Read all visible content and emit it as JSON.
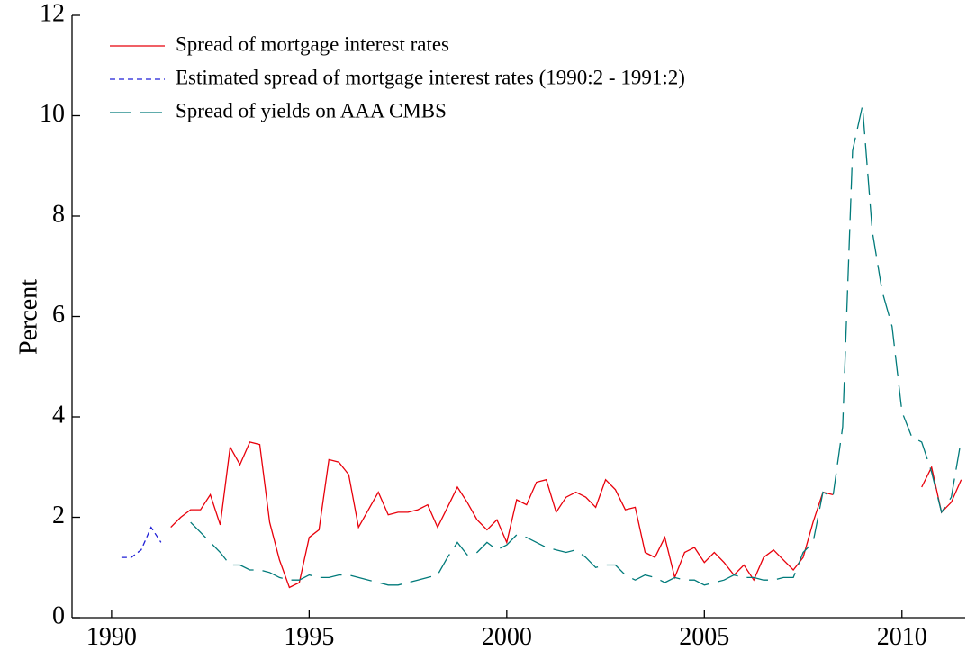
{
  "chart_data": {
    "type": "line",
    "ylabel": "Percent",
    "xlim": [
      1989.0,
      2011.6
    ],
    "ylim": [
      0,
      12
    ],
    "xticks": [
      1990,
      1995,
      2000,
      2005,
      2010
    ],
    "yticks": [
      0,
      2,
      4,
      6,
      8,
      10,
      12
    ],
    "legend": "top-left",
    "series": [
      {
        "name": "Spread of mortgage interest rates",
        "color": "#e8000b",
        "style": "solid",
        "x": [
          1991.5,
          1991.75,
          1992.0,
          1992.25,
          1992.5,
          1992.75,
          1993.0,
          1993.25,
          1993.5,
          1993.75,
          1994.0,
          1994.25,
          1994.5,
          1994.75,
          1995.0,
          1995.25,
          1995.5,
          1995.75,
          1996.0,
          1996.25,
          1996.5,
          1996.75,
          1997.0,
          1997.25,
          1997.5,
          1997.75,
          1998.0,
          1998.25,
          1998.5,
          1998.75,
          1999.0,
          1999.25,
          1999.5,
          1999.75,
          2000.0,
          2000.25,
          2000.5,
          2000.75,
          2001.0,
          2001.25,
          2001.5,
          2001.75,
          2002.0,
          2002.25,
          2002.5,
          2002.75,
          2003.0,
          2003.25,
          2003.5,
          2003.75,
          2004.0,
          2004.25,
          2004.5,
          2004.75,
          2005.0,
          2005.25,
          2005.5,
          2005.75,
          2006.0,
          2006.25,
          2006.5,
          2006.75,
          2007.0,
          2007.25,
          2007.5,
          2007.75,
          2008.0,
          2008.25,
          2008.5,
          2010.5,
          2010.75,
          2011.0,
          2011.25,
          2011.5
        ],
        "values": [
          1.8,
          2.0,
          2.15,
          2.15,
          2.45,
          1.85,
          3.4,
          3.05,
          3.5,
          3.45,
          1.9,
          1.15,
          0.6,
          0.7,
          1.6,
          1.75,
          3.15,
          3.1,
          2.85,
          1.8,
          2.15,
          2.5,
          2.05,
          2.1,
          2.1,
          2.15,
          2.25,
          1.8,
          2.2,
          2.6,
          2.3,
          1.95,
          1.75,
          1.95,
          1.5,
          2.35,
          2.25,
          2.7,
          2.75,
          2.1,
          2.4,
          2.5,
          2.4,
          2.2,
          2.75,
          2.55,
          2.15,
          2.2,
          1.3,
          1.2,
          1.6,
          0.8,
          1.3,
          1.4,
          1.1,
          1.3,
          1.1,
          0.85,
          1.05,
          0.75,
          1.2,
          1.35,
          1.15,
          0.95,
          1.2,
          1.9,
          2.5,
          2.45,
          null,
          2.6,
          3.0,
          2.1,
          2.3,
          2.75
        ]
      },
      {
        "name": "Estimated spread of mortgage interest rates (1990:2 - 1991:2)",
        "color": "#1f1fd6",
        "style": "dashed",
        "x": [
          1990.25,
          1990.5,
          1990.75,
          1991.0,
          1991.25
        ],
        "values": [
          1.2,
          1.2,
          1.35,
          1.8,
          1.5
        ]
      },
      {
        "name": "Spread of yields on AAA CMBS",
        "color": "#007a7a",
        "style": "long-dash",
        "x": [
          1992.0,
          1992.25,
          1992.5,
          1992.75,
          1993.0,
          1993.25,
          1993.5,
          1993.75,
          1994.0,
          1994.25,
          1994.5,
          1994.75,
          1995.0,
          1995.25,
          1995.5,
          1995.75,
          1996.0,
          1996.25,
          1996.5,
          1996.75,
          1997.0,
          1997.25,
          1997.5,
          1997.75,
          1998.0,
          1998.25,
          1998.5,
          1998.75,
          1999.0,
          1999.25,
          1999.5,
          1999.75,
          2000.0,
          2000.25,
          2000.5,
          2000.75,
          2001.0,
          2001.25,
          2001.5,
          2001.75,
          2002.0,
          2002.25,
          2002.5,
          2002.75,
          2003.0,
          2003.25,
          2003.5,
          2003.75,
          2004.0,
          2004.25,
          2004.5,
          2004.75,
          2005.0,
          2005.25,
          2005.5,
          2005.75,
          2006.0,
          2006.25,
          2006.5,
          2006.75,
          2007.0,
          2007.25,
          2007.5,
          2007.75,
          2008.0,
          2008.25,
          2008.5,
          2008.75,
          2009.0,
          2009.25,
          2009.5,
          2009.75,
          2010.0,
          2010.25,
          2010.5,
          2010.75,
          2011.0,
          2011.25,
          2011.5
        ],
        "values": [
          1.9,
          1.7,
          1.5,
          1.3,
          1.05,
          1.05,
          0.95,
          0.95,
          0.9,
          0.8,
          0.75,
          0.75,
          0.85,
          0.8,
          0.8,
          0.85,
          0.85,
          0.8,
          0.75,
          0.7,
          0.65,
          0.65,
          0.7,
          0.75,
          0.8,
          0.85,
          1.2,
          1.5,
          1.25,
          1.3,
          1.5,
          1.35,
          1.45,
          1.65,
          1.6,
          1.5,
          1.4,
          1.35,
          1.3,
          1.35,
          1.2,
          1.0,
          1.05,
          1.05,
          0.85,
          0.75,
          0.85,
          0.8,
          0.7,
          0.8,
          0.75,
          0.75,
          0.65,
          0.7,
          0.75,
          0.85,
          0.8,
          0.8,
          0.75,
          0.75,
          0.8,
          0.8,
          1.3,
          1.5,
          2.5,
          2.4,
          3.8,
          9.3,
          10.2,
          7.7,
          6.5,
          5.8,
          4.1,
          3.6,
          3.5,
          2.9,
          2.1,
          2.4,
          3.55
        ]
      }
    ]
  }
}
